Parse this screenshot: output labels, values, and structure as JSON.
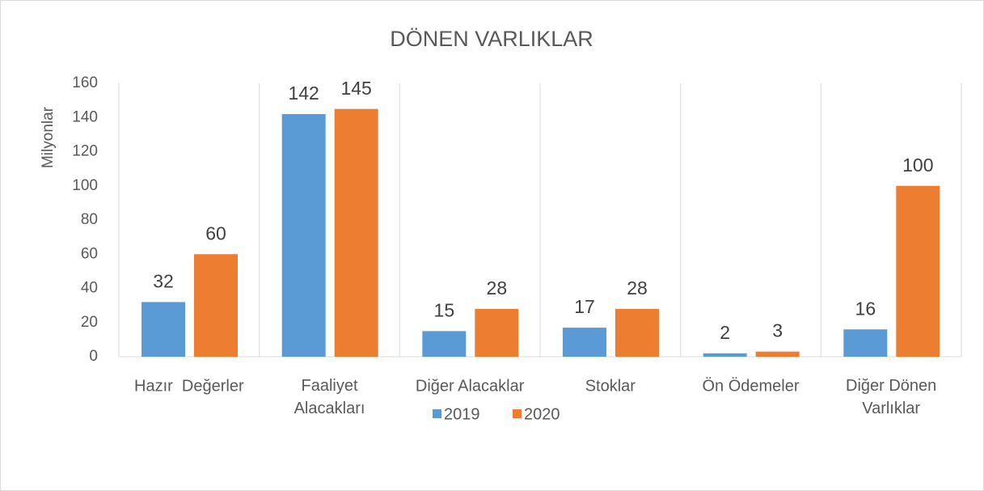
{
  "chart_data": {
    "type": "bar",
    "title": "DÖNEN VARLIKLAR",
    "y_label": "Milyonlar",
    "categories": [
      "Hazır  Değerler",
      "Faaliyet Alacakları",
      "Diğer Alacaklar",
      "Stoklar",
      "Ön Ödemeler",
      "Diğer Dönen Varlıklar"
    ],
    "series": [
      {
        "name": "2019",
        "color": "#5b9bd5",
        "values": [
          32,
          142,
          15,
          17,
          2,
          16
        ]
      },
      {
        "name": "2020",
        "color": "#ed7d31",
        "values": [
          60,
          145,
          28,
          28,
          3,
          100
        ]
      }
    ],
    "ylim": [
      0,
      160
    ],
    "yticks": [
      0,
      20,
      40,
      60,
      80,
      100,
      120,
      140,
      160
    ],
    "legend": "bottom"
  }
}
